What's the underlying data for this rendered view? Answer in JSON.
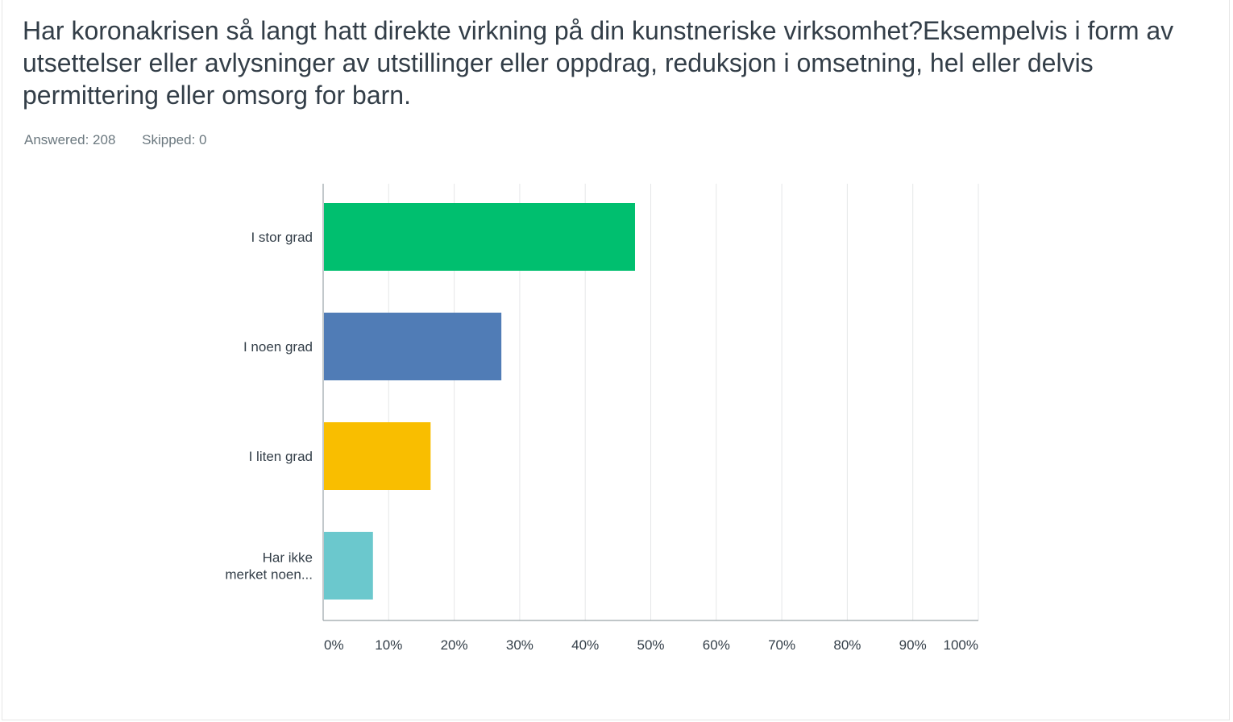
{
  "question": {
    "title": "Har koronakrisen så langt hatt direkte virkning på din kunstneriske virksomhet?Eksempelvis i form av utsettelser eller avlysninger av utstillinger eller oppdrag, reduksjon i omsetning, hel eller delvis permittering eller omsorg for barn."
  },
  "stats": {
    "answered": "Answered: 208",
    "skipped": "Skipped: 0"
  },
  "chart_data": {
    "type": "bar",
    "orientation": "horizontal",
    "title": "",
    "xlabel": "",
    "ylabel": "",
    "xlim": [
      0,
      100
    ],
    "grid": true,
    "categories": [
      [
        "I stor grad"
      ],
      [
        "I noen grad"
      ],
      [
        "I liten grad"
      ],
      [
        "Har ikke",
        "merket noen..."
      ]
    ],
    "values": [
      47.6,
      27.2,
      16.4,
      7.6
    ],
    "colors": [
      "#00bf6f",
      "#507cb6",
      "#f9be00",
      "#6bc8cd"
    ],
    "tick_values": [
      0,
      10,
      20,
      30,
      40,
      50,
      60,
      70,
      80,
      90,
      100
    ],
    "tick_labels": [
      "0%",
      "10%",
      "20%",
      "30%",
      "40%",
      "50%",
      "60%",
      "70%",
      "80%",
      "90%",
      "100%"
    ]
  }
}
